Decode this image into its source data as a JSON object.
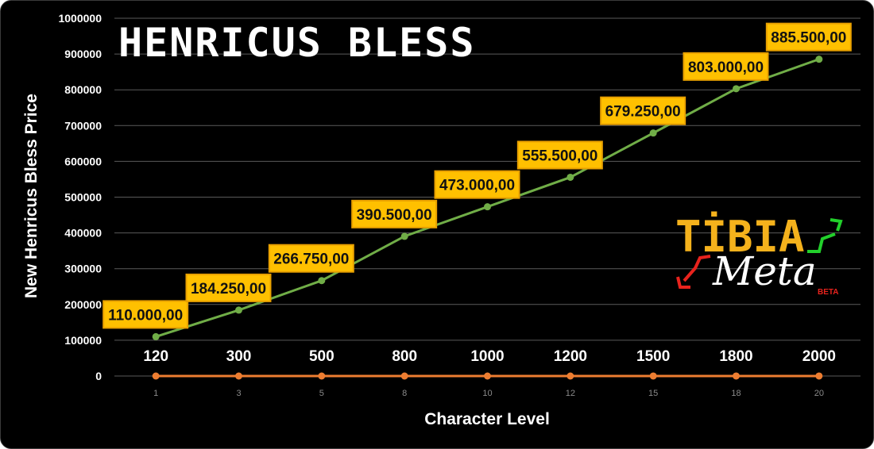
{
  "chart_data": {
    "type": "line",
    "title": "HENRICUS BLESS",
    "xlabel": "Character Level",
    "ylabel": "New  Henricus Bless Price",
    "ylim": [
      0,
      1000000
    ],
    "yticks": [
      "0",
      "100000",
      "200000",
      "300000",
      "400000",
      "500000",
      "600000",
      "700000",
      "800000",
      "900000",
      "1000000"
    ],
    "categories": [
      "120",
      "300",
      "500",
      "800",
      "1000",
      "1200",
      "1500",
      "1800",
      "2000"
    ],
    "secondary_x": [
      1,
      3,
      5,
      8,
      10,
      12,
      15,
      18,
      20
    ],
    "grid": true,
    "legend": "none",
    "series": [
      {
        "values": [
          110000,
          184250,
          266750,
          390500,
          473000,
          555500,
          679250,
          803000,
          885500
        ],
        "labels": [
          "110.000,00",
          "184.250,00",
          "266.750,00",
          "390.500,00",
          "473.000,00",
          "555.500,00",
          "679.250,00",
          "803.000,00",
          "885.500,00"
        ],
        "color": "#70ad47"
      },
      {
        "values": [
          1,
          3,
          5,
          8,
          10,
          12,
          15,
          18,
          20
        ],
        "color": "#ed7d31"
      }
    ],
    "label_box_color": "#ffc000",
    "label_border_color": "#e8a000"
  },
  "logo": {
    "line1": "TİBIA",
    "line2": "Meta",
    "badge": "BETA",
    "colors": {
      "tibia": "#f5b21c",
      "meta": "#ffffff",
      "beta": "#e8231d",
      "arrow_up": "#22d02b",
      "arrow_down": "#e8231d"
    }
  }
}
